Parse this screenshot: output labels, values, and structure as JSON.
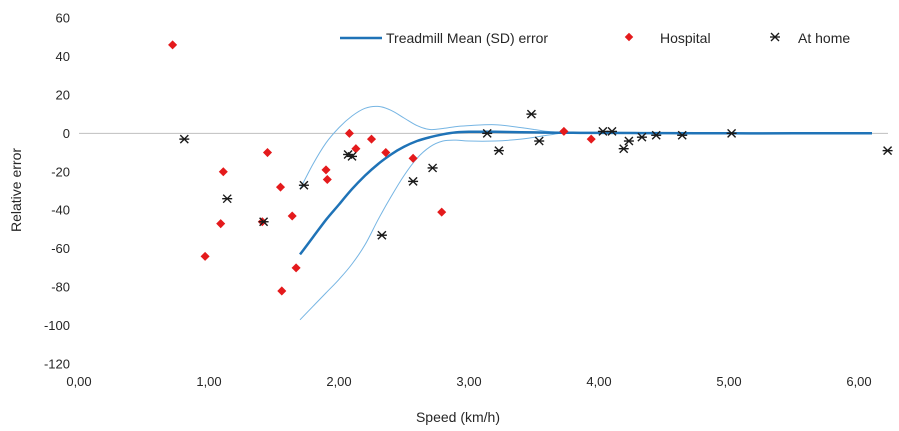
{
  "chart_data": {
    "type": "scatter",
    "xlabel": "Speed (km/h)",
    "ylabel": "Relative error",
    "xlim": [
      0,
      6.3
    ],
    "ylim": [
      -120,
      60
    ],
    "x_ticks": [
      "0,00",
      "1,00",
      "2,00",
      "3,00",
      "4,00",
      "5,00",
      "6,00"
    ],
    "x_tick_values": [
      0,
      1,
      2,
      3,
      4,
      5,
      6
    ],
    "y_ticks": [
      "60",
      "40",
      "20",
      "0",
      "-20",
      "-40",
      "-60",
      "-80",
      "-100",
      "-120"
    ],
    "y_tick_values": [
      60,
      40,
      20,
      0,
      -20,
      -40,
      -60,
      -80,
      -100,
      -120
    ],
    "grid": false,
    "legend_position": "top-right",
    "colors": {
      "mean": "#1f73b7",
      "sd": "#76b5e3",
      "hospital": "#e41a1c",
      "home": "#1a1a1a"
    },
    "series": [
      {
        "name": "Treadmill Mean (SD) error",
        "kind": "line",
        "x": [
          1.7,
          1.8,
          1.9,
          2.0,
          2.1,
          2.2,
          2.3,
          2.4,
          2.5,
          2.6,
          2.7,
          2.8,
          2.9,
          3.0,
          3.2,
          3.4,
          3.6,
          3.8,
          4.0,
          4.5,
          5.0,
          5.5,
          6.1
        ],
        "y": [
          -63,
          -54,
          -45,
          -37,
          -29,
          -22,
          -16,
          -11,
          -7,
          -4,
          -2,
          -0.5,
          0.5,
          0.8,
          0.8,
          0.6,
          0.4,
          0.3,
          0.2,
          0.1,
          0,
          0,
          0
        ]
      },
      {
        "name": "",
        "kind": "sd-band",
        "upper": {
          "x": [
            1.7,
            1.8,
            1.9,
            2.0,
            2.1,
            2.2,
            2.3,
            2.4,
            2.5,
            2.6,
            2.7,
            2.8,
            2.9,
            3.0,
            3.2,
            3.4,
            3.5,
            3.6,
            3.7
          ],
          "y": [
            -29,
            -16,
            -5,
            3,
            9,
            13,
            14,
            12,
            8,
            4,
            2,
            2.5,
            3.5,
            4,
            4.5,
            3,
            2,
            1,
            0.5
          ]
        },
        "lower": {
          "x": [
            1.7,
            1.8,
            1.9,
            2.0,
            2.1,
            2.2,
            2.3,
            2.4,
            2.5,
            2.6,
            2.7,
            2.8,
            2.9,
            3.0,
            3.2,
            3.4,
            3.6,
            3.7
          ],
          "y": [
            -97,
            -90,
            -83,
            -76,
            -68,
            -58,
            -45,
            -33,
            -22,
            -13,
            -7,
            -4,
            -3.5,
            -4,
            -4,
            -3,
            -1,
            0
          ]
        }
      },
      {
        "name": "Hospital",
        "kind": "scatter-diamond",
        "x": [
          0.72,
          0.97,
          1.09,
          1.11,
          1.41,
          1.45,
          1.55,
          1.56,
          1.64,
          1.67,
          1.9,
          1.91,
          2.08,
          2.13,
          2.25,
          2.36,
          2.57,
          2.79,
          3.73,
          3.94
        ],
        "y": [
          46,
          -64,
          -47,
          -20,
          -46,
          -10,
          -28,
          -82,
          -43,
          -70,
          -19,
          -24,
          0,
          -8,
          -3,
          -10,
          -13,
          -41,
          1,
          -3
        ]
      },
      {
        "name": "At home",
        "kind": "scatter-star",
        "x": [
          0.81,
          1.14,
          1.42,
          1.73,
          2.07,
          2.1,
          2.33,
          2.57,
          2.72,
          3.14,
          3.23,
          3.48,
          3.54,
          4.03,
          4.1,
          4.19,
          4.23,
          4.33,
          4.44,
          4.64,
          5.02,
          6.22
        ],
        "y": [
          -3,
          -34,
          -46,
          -27,
          -11,
          -12,
          -53,
          -25,
          -18,
          0,
          -9,
          10,
          -4,
          1,
          1,
          -8,
          -4,
          -2,
          -1,
          -1,
          0,
          -9
        ]
      }
    ]
  }
}
